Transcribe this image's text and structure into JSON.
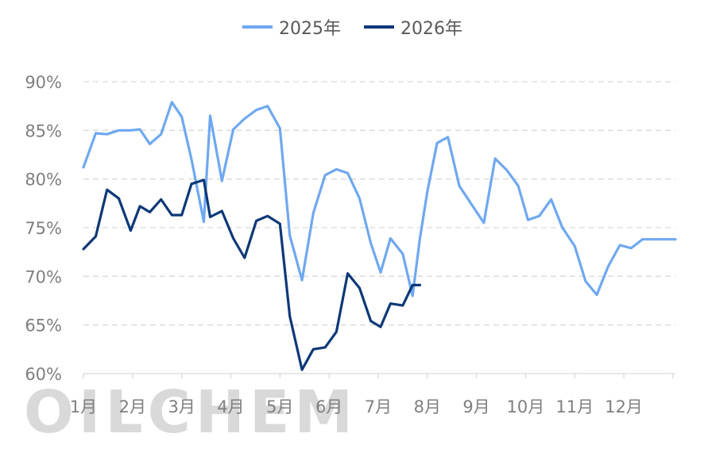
{
  "chart_data": {
    "type": "line",
    "title": "",
    "xlabel": "",
    "ylabel": "",
    "ylim": [
      60,
      90
    ],
    "y_ticks": [
      "60%",
      "65%",
      "70%",
      "75%",
      "80%",
      "85%",
      "90%"
    ],
    "y_tick_values": [
      60,
      65,
      70,
      75,
      80,
      85,
      90
    ],
    "x_categories": [
      "1月",
      "2月",
      "3月",
      "4月",
      "5月",
      "6月",
      "7月",
      "8月",
      "9月",
      "10月",
      "11月",
      "12月"
    ],
    "grid": "horizontal dashed",
    "legend_position": "top-center",
    "series": [
      {
        "name": "2025年",
        "color": "#6fa8f0",
        "x": [
          1.0,
          1.25,
          1.48,
          1.72,
          1.96,
          2.15,
          2.35,
          2.58,
          2.8,
          3.0,
          3.2,
          3.45,
          3.58,
          3.82,
          4.05,
          4.28,
          4.52,
          4.75,
          5.0,
          5.2,
          5.45,
          5.68,
          5.92,
          6.15,
          6.38,
          6.62,
          6.85,
          7.05,
          7.25,
          7.5,
          7.7,
          7.85,
          8.0,
          8.2,
          8.42,
          8.65,
          8.9,
          9.15,
          9.38,
          9.62,
          9.85,
          10.05,
          10.28,
          10.52,
          10.75,
          11.0,
          11.22,
          11.45,
          11.68,
          11.92,
          12.15,
          12.38,
          12.62,
          12.85,
          13.05
        ],
        "values": [
          81.2,
          84.7,
          84.6,
          85.0,
          85.0,
          85.1,
          83.6,
          84.6,
          87.9,
          86.4,
          82.0,
          75.6,
          86.5,
          79.8,
          85.1,
          86.2,
          87.1,
          87.5,
          85.2,
          74.2,
          69.6,
          76.5,
          80.4,
          81.0,
          80.6,
          78.0,
          73.4,
          70.4,
          73.9,
          72.3,
          68.0,
          73.9,
          78.7,
          83.7,
          84.3,
          79.3,
          77.4,
          75.5,
          82.1,
          80.9,
          79.3,
          75.8,
          76.2,
          77.9,
          75.0,
          73.1,
          69.5,
          68.1,
          71.0,
          73.2,
          72.9,
          73.8,
          73.8,
          73.8,
          73.8
        ]
      },
      {
        "name": "2026年",
        "color": "#0d3878",
        "x": [
          1.0,
          1.25,
          1.48,
          1.72,
          1.96,
          2.15,
          2.35,
          2.58,
          2.8,
          3.0,
          3.2,
          3.45,
          3.58,
          3.82,
          4.05,
          4.28,
          4.52,
          4.75,
          5.0,
          5.2,
          5.45,
          5.68,
          5.92,
          6.15,
          6.38,
          6.62,
          6.85,
          7.05,
          7.25,
          7.5,
          7.7,
          7.85
        ],
        "values": [
          72.8,
          74.1,
          78.9,
          78.0,
          74.7,
          77.2,
          76.6,
          77.9,
          76.3,
          76.3,
          79.5,
          79.9,
          76.1,
          76.7,
          73.9,
          71.9,
          75.7,
          76.2,
          75.4,
          65.9,
          60.4,
          62.5,
          62.7,
          64.3,
          70.3,
          68.8,
          65.4,
          64.8,
          67.2,
          67.0,
          69.1,
          69.1
        ]
      }
    ]
  }
}
